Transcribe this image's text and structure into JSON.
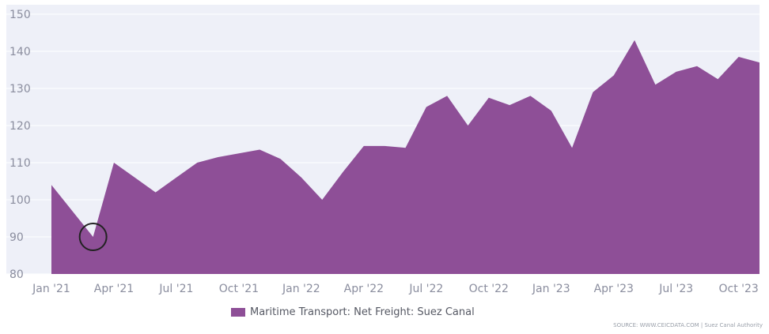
{
  "chart_data": {
    "type": "area",
    "x": [
      "Jan '21",
      "Feb '21",
      "Mar '21",
      "Apr '21",
      "May '21",
      "Jun '21",
      "Jul '21",
      "Aug '21",
      "Sep '21",
      "Oct '21",
      "Nov '21",
      "Dec '21",
      "Jan '22",
      "Feb '22",
      "Mar '22",
      "Apr '22",
      "May '22",
      "Jun '22",
      "Jul '22",
      "Aug '22",
      "Sep '22",
      "Oct '22",
      "Nov '22",
      "Dec '22",
      "Jan '23",
      "Feb '23",
      "Mar '23",
      "Apr '23",
      "May '23",
      "Jun '23",
      "Jul '23",
      "Aug '23",
      "Sep '23",
      "Oct '23",
      "Nov '23"
    ],
    "series": [
      {
        "name": "Maritime Transport: Net Freight: Suez Canal",
        "color": "#8e4f97",
        "values": [
          104,
          97,
          90,
          110,
          106,
          102,
          106,
          110,
          111.5,
          112.5,
          113.5,
          111,
          106,
          100,
          107.5,
          114.5,
          114.5,
          114,
          125,
          128,
          120,
          127.5,
          125.5,
          128,
          124,
          114,
          129,
          133.5,
          143,
          131,
          134.5,
          136,
          132.5,
          138.5,
          137
        ]
      }
    ],
    "x_tick_labels": [
      "Jan '21",
      "Apr '21",
      "Jul '21",
      "Oct '21",
      "Jan '22",
      "Apr '22",
      "Jul '22",
      "Oct '22",
      "Jan '23",
      "Apr '23",
      "Jul '23",
      "Oct '23"
    ],
    "x_tick_indices": [
      0,
      3,
      6,
      9,
      12,
      15,
      18,
      21,
      24,
      27,
      30,
      33
    ],
    "y_tick_labels": [
      "80",
      "90",
      "100",
      "110",
      "120",
      "130",
      "140",
      "150"
    ],
    "y_ticks": [
      80,
      90,
      100,
      110,
      120,
      130,
      140,
      150
    ],
    "ylim": [
      80,
      150
    ],
    "grid": true,
    "legend_position": "bottom-center",
    "annotation": {
      "type": "circle",
      "x_index": 2,
      "value": 90
    },
    "source": "SOURCE: WWW.CEICDATA.COM | Suez Canal Authority",
    "colors": {
      "plot_background": "#eef0f8",
      "grid": "#ffffff",
      "axis_text": "#8a8d9e"
    }
  }
}
